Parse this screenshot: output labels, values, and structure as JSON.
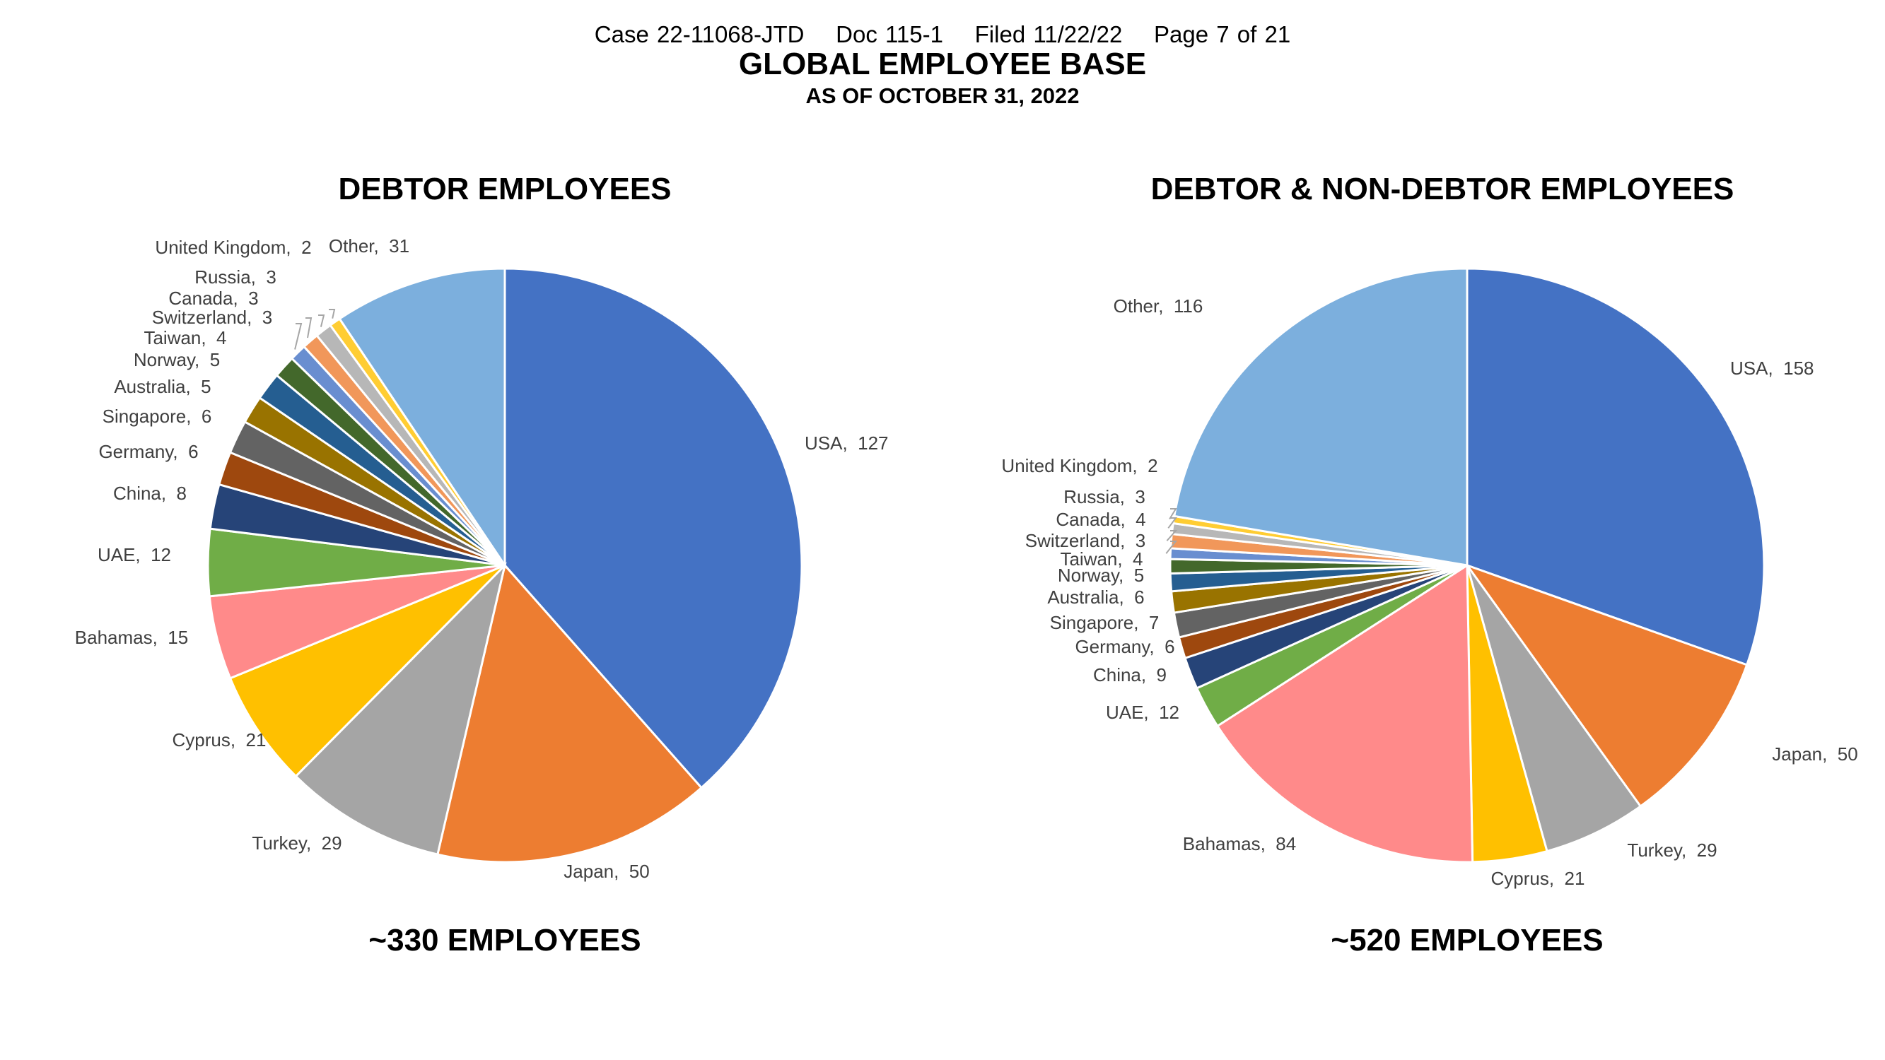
{
  "header": {
    "case_line": "Case 22-11068-JTD    Doc 115-1    Filed 11/22/22    Page 7 of 21",
    "title": "GLOBAL EMPLOYEE BASE",
    "subtitle": "AS OF OCTOBER 31, 2022"
  },
  "colors": {
    "USA": "#4472C4",
    "Japan": "#ED7D31",
    "Turkey": "#A5A5A5",
    "Cyprus": "#FFC000",
    "Bahamas": "#FF8A8A",
    "UAE": "#70AD47",
    "China": "#264478",
    "Germany": "#9E480E",
    "Singapore": "#636363",
    "Australia": "#997300",
    "Norway": "#255E91",
    "Taiwan": "#43682B",
    "Switzerland": "#698ED0",
    "Canada": "#F1975A",
    "Russia": "#B7B7B7",
    "United Kingdom": "#FFCD33",
    "Other": "#7CAFDD"
  },
  "chart_data": [
    {
      "type": "pie",
      "title": "DEBTOR EMPLOYEES",
      "total_label": "~330 EMPLOYEES",
      "categories": [
        "USA",
        "Japan",
        "Turkey",
        "Cyprus",
        "Bahamas",
        "UAE",
        "China",
        "Germany",
        "Singapore",
        "Australia",
        "Norway",
        "Taiwan",
        "Switzerland",
        "Canada",
        "Russia",
        "United Kingdom",
        "Other"
      ],
      "values": [
        127,
        50,
        29,
        21,
        15,
        12,
        8,
        6,
        6,
        5,
        5,
        4,
        3,
        3,
        3,
        2,
        31
      ],
      "labels": [
        "USA,  127",
        "Japan,  50",
        "Turkey,  29",
        "Cyprus,  21",
        "Bahamas,  15",
        "UAE,  12",
        "China,  8",
        "Germany,  6",
        "Singapore,  6",
        "Australia,  5",
        "Norway,  5",
        "Taiwan,  4",
        "Switzerland,  3",
        "Canada,  3",
        "Russia,  3",
        "United Kingdom,  2",
        "Other,  31"
      ]
    },
    {
      "type": "pie",
      "title": "DEBTOR & NON-DEBTOR EMPLOYEES",
      "total_label": "~520 EMPLOYEES",
      "categories": [
        "USA",
        "Japan",
        "Turkey",
        "Cyprus",
        "Bahamas",
        "UAE",
        "China",
        "Germany",
        "Singapore",
        "Australia",
        "Norway",
        "Taiwan",
        "Switzerland",
        "Canada",
        "Russia",
        "United Kingdom",
        "Other"
      ],
      "values": [
        158,
        50,
        29,
        21,
        84,
        12,
        9,
        6,
        7,
        6,
        5,
        4,
        3,
        4,
        3,
        2,
        116
      ],
      "labels": [
        "USA,  158",
        "Japan,  50",
        "Turkey,  29",
        "Cyprus,  21",
        "Bahamas,  84",
        "UAE,  12",
        "China,  9",
        "Germany,  6",
        "Singapore,  7",
        "Australia,  6",
        "Norway,  5",
        "Taiwan,  4",
        "Switzerland,  3",
        "Canada,  4",
        "Russia,  3",
        "United Kingdom,  2",
        "Other,  116"
      ]
    }
  ]
}
